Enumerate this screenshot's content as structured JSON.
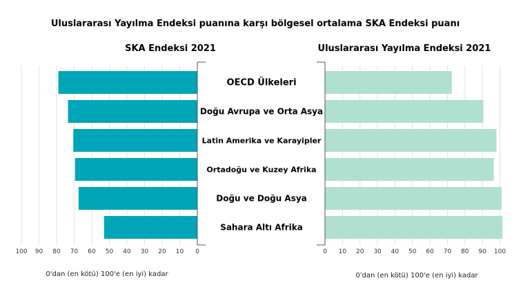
{
  "title": "Uluslararası Yayılma Endeksi puanına karşı bölgesel ortalama SKA Endeksi puanı",
  "colors": {
    "left_bar": "#00a5b8",
    "right_bar": "#b0e0d0",
    "grid": "#e3e3e3"
  },
  "chart_data": [
    {
      "type": "bar",
      "orientation": "horizontal",
      "direction": "leftward",
      "title": "SKA Endeksi 2021",
      "xlabel": "0'dan (en kötü) 100'e (en iyi) kadar",
      "xlim": [
        0,
        100
      ],
      "ticks": [
        "100",
        "90",
        "80",
        "70",
        "60",
        "50",
        "40",
        "30",
        "20",
        "10",
        "0"
      ],
      "grid": true,
      "categories": [
        "OECD Ülkeleri",
        "Doğu Avrupa ve Orta Asya",
        "Latin Amerika ve Karayipler",
        "Ortadoğu ve Kuzey Afrika",
        "Doğu ve Doğu Asya",
        "Sahara Altı Afrika"
      ],
      "values": [
        79,
        73.5,
        70.5,
        69.5,
        67.5,
        53
      ]
    },
    {
      "type": "bar",
      "orientation": "horizontal",
      "direction": "rightward",
      "title": "Uluslararası Yayılma Endeksi 2021",
      "xlabel": "0'dan (en kötü) 100'e (en iyi) kadar",
      "xlim": [
        0,
        100
      ],
      "ticks": [
        "0",
        "10",
        "20",
        "30",
        "40",
        "50",
        "60",
        "70",
        "80",
        "90",
        "100"
      ],
      "grid": true,
      "categories": [
        "OECD Ülkeleri",
        "Doğu Avrupa ve Orta Asya",
        "Latin Amerika ve Karayipler",
        "Ortadoğu ve Kuzey Afrika",
        "Doğu ve Doğu Asya",
        "Sahara Altı Afrika"
      ],
      "values": [
        72.5,
        90.5,
        98,
        96.5,
        101,
        101.5
      ]
    }
  ]
}
